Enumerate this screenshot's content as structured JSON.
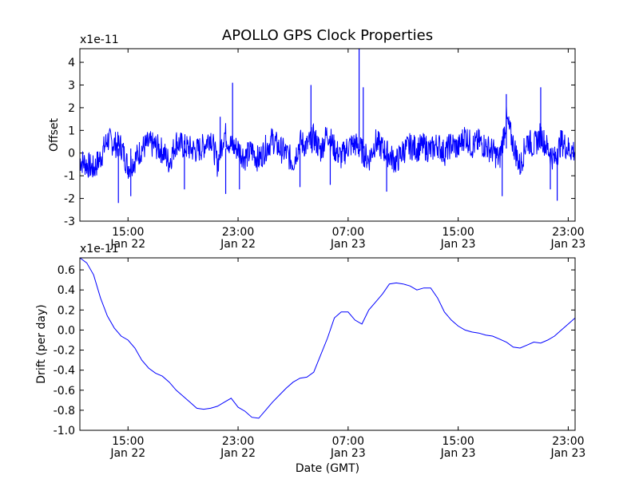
{
  "chart_data": [
    {
      "type": "line",
      "title": "APOLLO GPS Clock Properties",
      "xlabel": "",
      "ylabel": "Offset",
      "y_multiplier": "x1e-11",
      "ylim": [
        -3,
        4.6
      ],
      "xlim": [
        "Jan 22 11:30",
        "Jan 23 23:30"
      ],
      "y_ticks": [
        "-3",
        "-2",
        "-1",
        "0",
        "1",
        "2",
        "3",
        "4"
      ],
      "x_ticks": [
        {
          "time": "15:00",
          "date": "Jan 22"
        },
        {
          "time": "23:00",
          "date": "Jan 22"
        },
        {
          "time": "07:00",
          "date": "Jan 23"
        },
        {
          "time": "15:00",
          "date": "Jan 23"
        },
        {
          "time": "23:00",
          "date": "Jan 23"
        }
      ],
      "color": "#0000ff",
      "series": [
        {
          "x_hours_from_jan22_1130": [
            0.0,
            0.5,
            1.0,
            1.5,
            2.0,
            2.5,
            3.0,
            3.5,
            4.0,
            4.5,
            5.0,
            5.5,
            6.0,
            6.5,
            7.0,
            7.5,
            8.0,
            8.5,
            9.0,
            9.5,
            10.0,
            10.5,
            11.0,
            11.5,
            12.0,
            12.5,
            13.0,
            13.5,
            14.0,
            14.5,
            15.0,
            15.5,
            16.0,
            16.5,
            17.0,
            17.5,
            18.0,
            18.5,
            19.0,
            19.5,
            20.0,
            20.5,
            21.0,
            21.5,
            22.0,
            22.5,
            23.0,
            23.5,
            24.0,
            24.5,
            25.0,
            25.5,
            26.0,
            26.5,
            27.0,
            27.5,
            28.0,
            28.5,
            29.0,
            29.5,
            30.0,
            30.5,
            31.0,
            31.5,
            32.0,
            32.5,
            33.0,
            33.5,
            34.0,
            34.5,
            35.0,
            35.5,
            36.0
          ],
          "values": [
            -0.3,
            -0.5,
            -0.7,
            -0.2,
            0.6,
            0.4,
            0.3,
            -0.6,
            -0.3,
            0.2,
            0.4,
            0.3,
            0.1,
            -0.4,
            0.5,
            0.3,
            0.2,
            0.1,
            0.3,
            0.8,
            -0.5,
            0.9,
            0.3,
            0.2,
            -0.2,
            0.1,
            -0.3,
            0.2,
            0.6,
            0.2,
            0.0,
            -0.4,
            0.5,
            0.3,
            0.7,
            0.1,
            0.9,
            0.2,
            -0.2,
            0.3,
            0.4,
            0.1,
            -0.3,
            0.5,
            0.2,
            -0.1,
            -0.4,
            0.1,
            0.3,
            0.2,
            0.3,
            0.1,
            0.4,
            0.0,
            0.4,
            0.2,
            0.8,
            0.3,
            0.5,
            0.3,
            0.1,
            -0.3,
            1.5,
            0.4,
            -0.6,
            0.6,
            0.3,
            0.8,
            0.2,
            -0.3,
            0.5,
            0.2,
            0.1
          ]
        }
      ],
      "spikes": [
        {
          "x": 2.8,
          "y": -2.2
        },
        {
          "x": 3.7,
          "y": -1.9
        },
        {
          "x": 10.2,
          "y": 1.6
        },
        {
          "x": 10.6,
          "y": -1.8
        },
        {
          "x": 11.1,
          "y": 3.1
        },
        {
          "x": 11.6,
          "y": -1.6
        },
        {
          "x": 16.8,
          "y": 3.0
        },
        {
          "x": 18.2,
          "y": -1.4
        },
        {
          "x": 20.3,
          "y": 4.6
        },
        {
          "x": 20.6,
          "y": 2.9
        },
        {
          "x": 22.3,
          "y": -1.7
        },
        {
          "x": 31.0,
          "y": 2.6
        },
        {
          "x": 30.7,
          "y": -1.9
        },
        {
          "x": 33.5,
          "y": 2.9
        },
        {
          "x": 34.7,
          "y": -2.1
        },
        {
          "x": 34.2,
          "y": -1.6
        },
        {
          "x": 16.0,
          "y": -1.5
        },
        {
          "x": 7.6,
          "y": -1.6
        }
      ]
    },
    {
      "type": "line",
      "title": "",
      "xlabel": "Date (GMT)",
      "ylabel": "Drift (per day)",
      "y_multiplier": "x1e-11",
      "ylim": [
        -1.0,
        0.72
      ],
      "xlim": [
        "Jan 22 11:30",
        "Jan 23 23:30"
      ],
      "y_ticks": [
        "-1.0",
        "-0.8",
        "-0.6",
        "-0.4",
        "-0.2",
        "0.0",
        "0.2",
        "0.4",
        "0.6"
      ],
      "x_ticks": [
        {
          "time": "15:00",
          "date": "Jan 22"
        },
        {
          "time": "23:00",
          "date": "Jan 22"
        },
        {
          "time": "07:00",
          "date": "Jan 23"
        },
        {
          "time": "15:00",
          "date": "Jan 23"
        },
        {
          "time": "23:00",
          "date": "Jan 23"
        }
      ],
      "color": "#0000ff",
      "series": [
        {
          "x_hours_from_jan22_1130": [
            0.0,
            0.5,
            1.0,
            1.5,
            2.0,
            2.5,
            3.0,
            3.5,
            4.0,
            4.5,
            5.0,
            5.5,
            6.0,
            6.5,
            7.0,
            7.5,
            8.0,
            8.5,
            9.0,
            9.5,
            10.0,
            10.5,
            11.0,
            11.5,
            12.0,
            12.5,
            13.0,
            13.5,
            14.0,
            14.5,
            15.0,
            15.5,
            16.0,
            16.5,
            17.0,
            17.5,
            18.0,
            18.5,
            19.0,
            19.5,
            20.0,
            20.5,
            21.0,
            21.5,
            22.0,
            22.5,
            23.0,
            23.5,
            24.0,
            24.5,
            25.0,
            25.5,
            26.0,
            26.5,
            27.0,
            27.5,
            28.0,
            28.5,
            29.0,
            29.5,
            30.0,
            30.5,
            31.0,
            31.5,
            32.0,
            32.5,
            33.0,
            33.5,
            34.0,
            34.5,
            35.0,
            35.5,
            36.0
          ],
          "values": [
            0.72,
            0.67,
            0.55,
            0.32,
            0.14,
            0.02,
            -0.06,
            -0.1,
            -0.18,
            -0.3,
            -0.38,
            -0.43,
            -0.46,
            -0.52,
            -0.6,
            -0.66,
            -0.72,
            -0.78,
            -0.79,
            -0.78,
            -0.76,
            -0.72,
            -0.68,
            -0.77,
            -0.81,
            -0.87,
            -0.88,
            -0.8,
            -0.72,
            -0.65,
            -0.58,
            -0.52,
            -0.48,
            -0.47,
            -0.42,
            -0.25,
            -0.08,
            0.12,
            0.18,
            0.18,
            0.1,
            0.06,
            0.2,
            0.28,
            0.36,
            0.46,
            0.47,
            0.46,
            0.44,
            0.4,
            0.42,
            0.42,
            0.32,
            0.18,
            0.1,
            0.04,
            0.0,
            -0.02,
            -0.03,
            -0.05,
            -0.06,
            -0.09,
            -0.12,
            -0.17,
            -0.18,
            -0.15,
            -0.12,
            -0.13,
            -0.1,
            -0.06,
            0.0,
            0.06,
            0.12
          ]
        }
      ]
    }
  ]
}
